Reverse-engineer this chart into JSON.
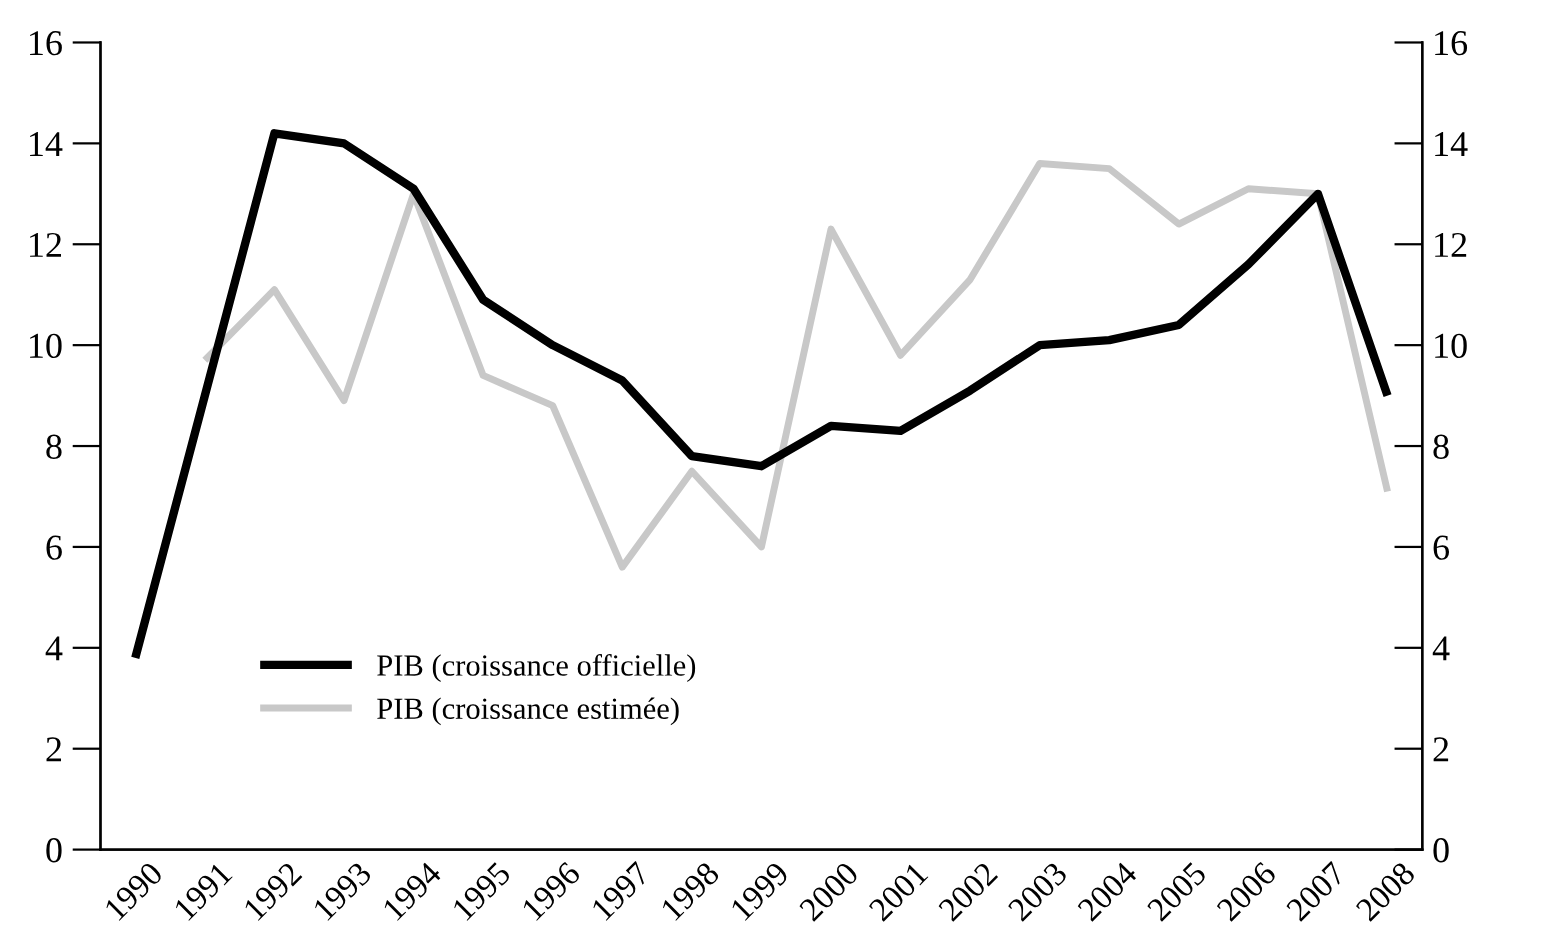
{
  "chart_data": {
    "type": "line",
    "categories": [
      "1990",
      "1991",
      "1992",
      "1993",
      "1994",
      "1995",
      "1996",
      "1997",
      "1998",
      "1999",
      "2000",
      "2001",
      "2002",
      "2003",
      "2004",
      "2005",
      "2006",
      "2007",
      "2008"
    ],
    "series": [
      {
        "name": "PIB (croissance officielle)",
        "color": "#000000",
        "values": [
          3.8,
          9.0,
          14.2,
          14.0,
          13.1,
          10.9,
          10.0,
          9.3,
          7.8,
          7.6,
          8.4,
          8.3,
          9.1,
          10.0,
          10.1,
          10.4,
          11.6,
          13.0,
          9.0
        ]
      },
      {
        "name": "PIB (croissance estimée)",
        "color": "#c8c8c8",
        "values": [
          null,
          9.7,
          11.1,
          8.9,
          13.0,
          9.4,
          8.8,
          5.6,
          7.5,
          6.0,
          12.3,
          9.8,
          11.3,
          13.6,
          13.5,
          12.4,
          13.1,
          13.0,
          7.1
        ]
      }
    ],
    "ylim": [
      0,
      16
    ],
    "yticks": [
      0,
      2,
      4,
      6,
      8,
      10,
      12,
      14,
      16
    ],
    "y2lim": [
      0,
      16
    ],
    "y2ticks": [
      0,
      2,
      4,
      6,
      8,
      10,
      12,
      14,
      16
    ],
    "grid": false,
    "legend": "bottom left",
    "marker": "none",
    "line_style": "solid"
  }
}
